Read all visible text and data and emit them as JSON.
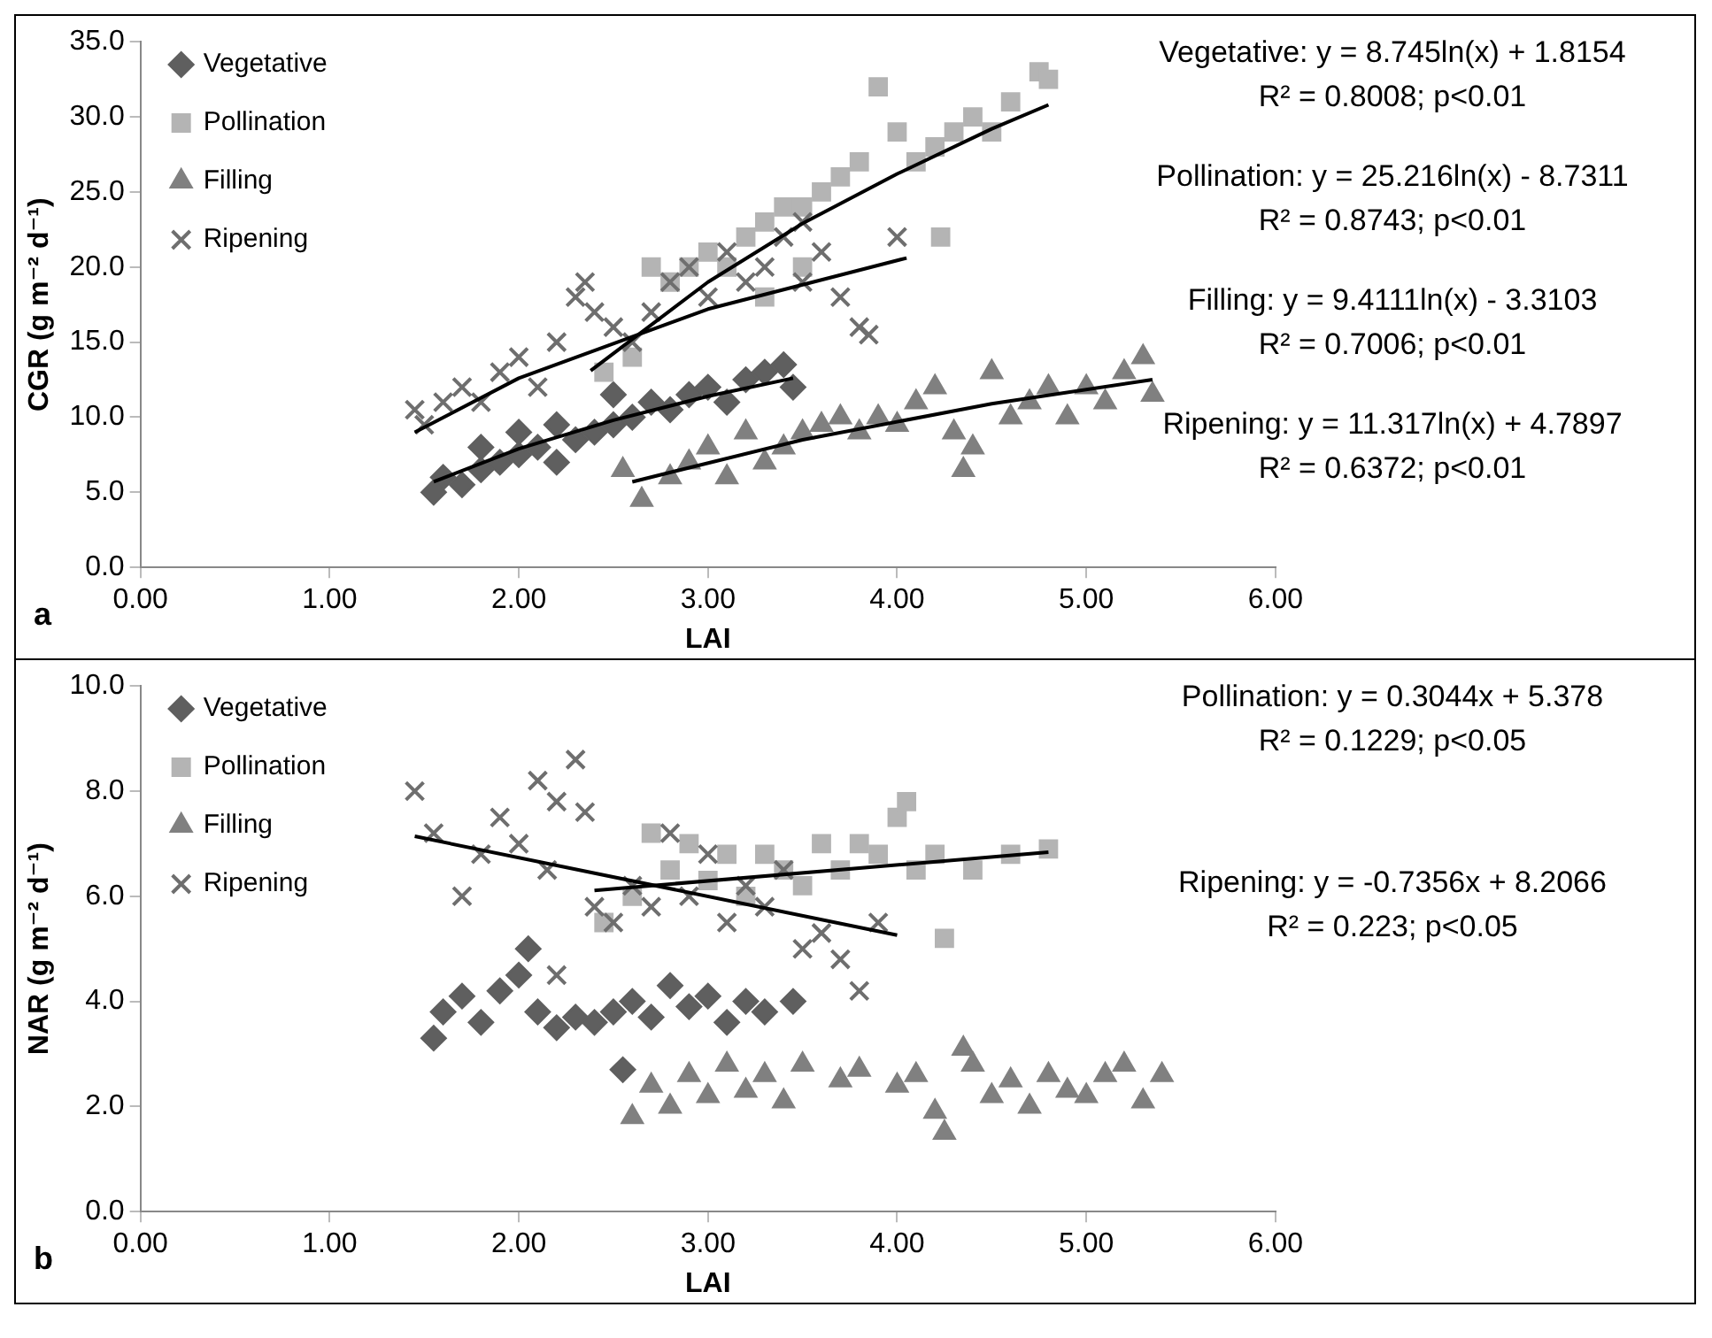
{
  "chart_data": [
    {
      "type": "scatter",
      "title": "a",
      "xlabel": "LAI",
      "ylabel": "CGR (g m⁻² d⁻¹)",
      "xlim": [
        0,
        6
      ],
      "ylim": [
        0,
        35
      ],
      "xticks": [
        {
          "value": 0,
          "label": "0.00"
        },
        {
          "value": 1,
          "label": "1.00"
        },
        {
          "value": 2,
          "label": "2.00"
        },
        {
          "value": 3,
          "label": "3.00"
        },
        {
          "value": 4,
          "label": "4.00"
        },
        {
          "value": 5,
          "label": "5.00"
        },
        {
          "value": 6,
          "label": "6.00"
        }
      ],
      "yticks": [
        {
          "value": 0,
          "label": "0.0"
        },
        {
          "value": 5,
          "label": "5.0"
        },
        {
          "value": 10,
          "label": "10.0"
        },
        {
          "value": 15,
          "label": "15.0"
        },
        {
          "value": 20,
          "label": "20.0"
        },
        {
          "value": 25,
          "label": "25.0"
        },
        {
          "value": 30,
          "label": "30.0"
        },
        {
          "value": 35,
          "label": "35.0"
        }
      ],
      "legend": "top left",
      "annotations": [
        "Vegetative: y = 8.745ln(x) + 1.8154",
        "R² = 0.8008; p<0.01",
        "Pollination: y = 25.216ln(x) - 8.7311",
        "R² = 0.8743; p<0.01",
        "Filling: y = 9.4111ln(x) - 3.3103",
        "R² = 0.7006; p<0.01",
        "Ripening: y = 11.317ln(x) + 4.7897",
        "R² = 0.6372; p<0.01"
      ],
      "series": [
        {
          "name": "Vegetative",
          "color": "#5f5f5f",
          "marker": "diamond",
          "x": [
            1.55,
            1.6,
            1.7,
            1.8,
            1.9,
            2.0,
            2.1,
            2.2,
            2.3,
            2.4,
            2.5,
            2.6,
            2.7,
            2.8,
            2.9,
            3.0,
            3.1,
            3.2,
            3.3,
            3.4,
            3.45,
            2.2,
            2.5,
            2.0,
            1.8
          ],
          "values": [
            5,
            6,
            5.5,
            6.5,
            7,
            7.5,
            8,
            7,
            8.5,
            9,
            9.5,
            10,
            11,
            10.5,
            11.5,
            12,
            11,
            12.5,
            13,
            13.5,
            12,
            9.5,
            11.5,
            9,
            8
          ]
        },
        {
          "name": "Pollination",
          "color": "#b4b4b4",
          "marker": "square",
          "x": [
            2.45,
            2.6,
            2.7,
            2.8,
            2.9,
            3.0,
            3.1,
            3.2,
            3.3,
            3.4,
            3.5,
            3.6,
            3.7,
            3.8,
            3.9,
            4.0,
            4.1,
            4.2,
            4.3,
            4.4,
            4.5,
            4.6,
            4.75,
            4.8,
            3.3,
            3.5,
            4.23
          ],
          "values": [
            13,
            14,
            20,
            19,
            20,
            21,
            20,
            22,
            23,
            24,
            24,
            25,
            26,
            27,
            32,
            29,
            27,
            28,
            29,
            30,
            29,
            31,
            33,
            32.5,
            18,
            20,
            22
          ]
        },
        {
          "name": "Filling",
          "color": "#808080",
          "marker": "triangle",
          "x": [
            2.55,
            2.65,
            2.8,
            2.9,
            3.0,
            3.1,
            3.2,
            3.3,
            3.4,
            3.5,
            3.6,
            3.7,
            3.8,
            3.9,
            4.0,
            4.1,
            4.2,
            4.3,
            4.35,
            4.4,
            4.5,
            4.6,
            4.7,
            4.8,
            4.9,
            5.0,
            5.1,
            5.2,
            5.3,
            5.35
          ],
          "values": [
            6.5,
            4.5,
            6,
            7,
            8,
            6,
            9,
            7,
            8,
            9,
            9.5,
            10,
            9,
            10,
            9.5,
            11,
            12,
            9,
            6.5,
            8,
            13,
            10,
            11,
            12,
            10,
            12,
            11,
            13,
            14,
            11.5
          ]
        },
        {
          "name": "Ripening",
          "color": "#6e6e6e",
          "marker": "cross",
          "x": [
            1.45,
            1.5,
            1.6,
            1.7,
            1.8,
            1.9,
            2.0,
            2.1,
            2.2,
            2.3,
            2.35,
            2.4,
            2.5,
            2.6,
            2.7,
            2.8,
            2.9,
            3.0,
            3.1,
            3.2,
            3.3,
            3.4,
            3.5,
            3.6,
            3.7,
            3.8,
            3.85,
            4.0,
            3.5
          ],
          "values": [
            10.5,
            9.5,
            11,
            12,
            11,
            13,
            14,
            12,
            15,
            18,
            19,
            17,
            16,
            15,
            17,
            19,
            20,
            18,
            21,
            19,
            20,
            22,
            19,
            21,
            18,
            16,
            15.5,
            22,
            23
          ]
        },
        {
          "type": "line",
          "color": "#000000",
          "marker": "none",
          "x": [
            1.55,
            2.0,
            2.5,
            3.0,
            3.45
          ],
          "values": [
            5.7,
            7.9,
            9.8,
            11.4,
            12.6
          ]
        },
        {
          "type": "line",
          "color": "#000000",
          "marker": "none",
          "x": [
            2.38,
            3.0,
            3.5,
            4.0,
            4.5,
            4.8
          ],
          "values": [
            13.1,
            19.0,
            22.9,
            26.2,
            29.2,
            30.8
          ]
        },
        {
          "type": "line",
          "color": "#000000",
          "marker": "none",
          "x": [
            2.6,
            3.5,
            4.5,
            5.35
          ],
          "values": [
            5.7,
            8.5,
            10.9,
            12.5
          ]
        },
        {
          "type": "line",
          "color": "#000000",
          "marker": "none",
          "x": [
            1.45,
            2.0,
            3.0,
            4.05
          ],
          "values": [
            9.0,
            12.6,
            17.2,
            20.6
          ]
        }
      ]
    },
    {
      "type": "scatter",
      "title": "b",
      "xlabel": "LAI",
      "ylabel": "NAR (g m⁻² d⁻¹)",
      "xlim": [
        0,
        6
      ],
      "ylim": [
        0,
        10
      ],
      "xticks": [
        {
          "value": 0,
          "label": "0.00"
        },
        {
          "value": 1,
          "label": "1.00"
        },
        {
          "value": 2,
          "label": "2.00"
        },
        {
          "value": 3,
          "label": "3.00"
        },
        {
          "value": 4,
          "label": "4.00"
        },
        {
          "value": 5,
          "label": "5.00"
        },
        {
          "value": 6,
          "label": "6.00"
        }
      ],
      "yticks": [
        {
          "value": 0,
          "label": "0.0"
        },
        {
          "value": 2,
          "label": "2.0"
        },
        {
          "value": 4,
          "label": "4.0"
        },
        {
          "value": 6,
          "label": "6.0"
        },
        {
          "value": 8,
          "label": "8.0"
        },
        {
          "value": 10,
          "label": "10.0"
        }
      ],
      "legend": "top left",
      "annotations": [
        "Pollination: y = 0.3044x + 5.378",
        "R² = 0.1229; p<0.05",
        "Ripening: y = -0.7356x + 8.2066",
        "R² = 0.223; p<0.05"
      ],
      "series": [
        {
          "name": "Vegetative",
          "color": "#5f5f5f",
          "marker": "diamond",
          "x": [
            1.55,
            1.6,
            1.7,
            1.8,
            1.9,
            2.0,
            2.05,
            2.1,
            2.2,
            2.3,
            2.4,
            2.5,
            2.6,
            2.7,
            2.8,
            2.9,
            3.0,
            3.1,
            3.2,
            3.3,
            3.45,
            2.55
          ],
          "values": [
            3.3,
            3.8,
            4.1,
            3.6,
            4.2,
            4.5,
            5.0,
            3.8,
            3.5,
            3.7,
            3.6,
            3.8,
            4.0,
            3.7,
            4.3,
            3.9,
            4.1,
            3.6,
            4.0,
            3.8,
            4.0,
            2.7
          ]
        },
        {
          "name": "Pollination",
          "color": "#b4b4b4",
          "marker": "square",
          "x": [
            2.45,
            2.6,
            2.7,
            2.8,
            2.9,
            3.0,
            3.1,
            3.2,
            3.3,
            3.4,
            3.5,
            3.6,
            3.7,
            3.8,
            3.9,
            4.0,
            4.05,
            4.1,
            4.2,
            4.25,
            4.4,
            4.6,
            4.8
          ],
          "values": [
            5.5,
            6.0,
            7.2,
            6.5,
            7.0,
            6.3,
            6.8,
            6.0,
            6.8,
            6.5,
            6.2,
            7.0,
            6.5,
            7.0,
            6.8,
            7.5,
            7.8,
            6.5,
            6.8,
            5.2,
            6.5,
            6.8,
            6.9
          ]
        },
        {
          "name": "Filling",
          "color": "#808080",
          "marker": "triangle",
          "x": [
            2.6,
            2.7,
            2.8,
            2.9,
            3.0,
            3.1,
            3.2,
            3.3,
            3.4,
            3.5,
            3.7,
            3.8,
            4.0,
            4.1,
            4.2,
            4.25,
            4.35,
            4.4,
            4.5,
            4.6,
            4.7,
            4.8,
            4.9,
            5.0,
            5.1,
            5.2,
            5.3,
            5.4
          ],
          "values": [
            1.8,
            2.4,
            2.0,
            2.6,
            2.2,
            2.8,
            2.3,
            2.6,
            2.1,
            2.8,
            2.5,
            2.7,
            2.4,
            2.6,
            1.9,
            1.5,
            3.1,
            2.8,
            2.2,
            2.5,
            2.0,
            2.6,
            2.3,
            2.2,
            2.6,
            2.8,
            2.1,
            2.6
          ]
        },
        {
          "name": "Ripening",
          "color": "#6e6e6e",
          "marker": "cross",
          "x": [
            1.45,
            1.55,
            1.7,
            1.8,
            1.9,
            2.0,
            2.1,
            2.15,
            2.2,
            2.3,
            2.35,
            2.4,
            2.5,
            2.6,
            2.7,
            2.8,
            2.9,
            3.0,
            3.1,
            3.2,
            3.3,
            3.4,
            3.5,
            3.6,
            3.7,
            3.8,
            3.9,
            2.2
          ],
          "values": [
            8.0,
            7.2,
            6.0,
            6.8,
            7.5,
            7.0,
            8.2,
            6.5,
            7.8,
            8.6,
            7.6,
            5.8,
            5.5,
            6.2,
            5.8,
            7.2,
            6.0,
            6.8,
            5.5,
            6.2,
            5.8,
            6.5,
            5.0,
            5.3,
            4.8,
            4.2,
            5.5,
            4.5
          ]
        },
        {
          "type": "line",
          "color": "#000000",
          "marker": "none",
          "x": [
            2.4,
            4.8
          ],
          "values": [
            6.11,
            6.84
          ]
        },
        {
          "type": "line",
          "color": "#000000",
          "marker": "none",
          "x": [
            1.45,
            4.0
          ],
          "values": [
            7.14,
            5.26
          ]
        }
      ]
    }
  ]
}
